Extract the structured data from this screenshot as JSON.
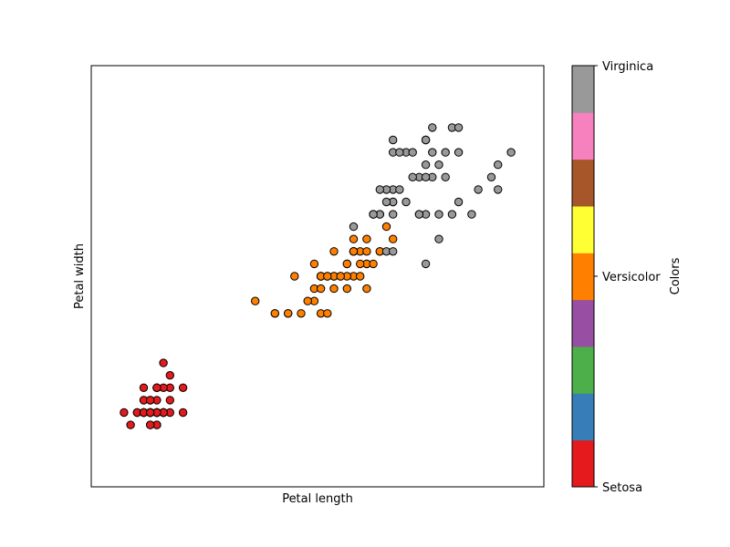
{
  "chart_data": {
    "type": "scatter",
    "xlabel": "Petal length",
    "ylabel": "Petal width",
    "xlim": [
      0.5,
      7.4
    ],
    "ylim": [
      -0.4,
      3.0
    ],
    "ticks_shown": false,
    "grid": false,
    "colorbar": {
      "label": "Colors",
      "colormap": "Set1",
      "tick_labels": [
        "Setosa",
        "Versicolor",
        "Virginica"
      ],
      "tick_positions": [
        0,
        1,
        2
      ],
      "colors": [
        "#e41a1c",
        "#377eb8",
        "#4daf4a",
        "#984ea3",
        "#ff7f00",
        "#ffff33",
        "#a65628",
        "#f781bf",
        "#999999"
      ]
    },
    "series": [
      {
        "name": "Setosa",
        "color": "#e41a1c",
        "points": [
          [
            1.4,
            0.2
          ],
          [
            1.4,
            0.2
          ],
          [
            1.3,
            0.2
          ],
          [
            1.5,
            0.2
          ],
          [
            1.4,
            0.2
          ],
          [
            1.7,
            0.4
          ],
          [
            1.4,
            0.3
          ],
          [
            1.5,
            0.2
          ],
          [
            1.4,
            0.2
          ],
          [
            1.5,
            0.1
          ],
          [
            1.5,
            0.2
          ],
          [
            1.6,
            0.2
          ],
          [
            1.4,
            0.1
          ],
          [
            1.1,
            0.1
          ],
          [
            1.2,
            0.2
          ],
          [
            1.5,
            0.4
          ],
          [
            1.3,
            0.4
          ],
          [
            1.4,
            0.3
          ],
          [
            1.7,
            0.3
          ],
          [
            1.5,
            0.3
          ],
          [
            1.7,
            0.2
          ],
          [
            1.5,
            0.4
          ],
          [
            1.0,
            0.2
          ],
          [
            1.7,
            0.5
          ],
          [
            1.9,
            0.2
          ],
          [
            1.6,
            0.2
          ],
          [
            1.6,
            0.4
          ],
          [
            1.5,
            0.2
          ],
          [
            1.4,
            0.2
          ],
          [
            1.6,
            0.2
          ],
          [
            1.6,
            0.2
          ],
          [
            1.5,
            0.4
          ],
          [
            1.5,
            0.1
          ],
          [
            1.4,
            0.2
          ],
          [
            1.5,
            0.2
          ],
          [
            1.2,
            0.2
          ],
          [
            1.3,
            0.2
          ],
          [
            1.4,
            0.1
          ],
          [
            1.3,
            0.2
          ],
          [
            1.5,
            0.2
          ],
          [
            1.3,
            0.3
          ],
          [
            1.3,
            0.3
          ],
          [
            1.3,
            0.2
          ],
          [
            1.6,
            0.6
          ],
          [
            1.9,
            0.4
          ],
          [
            1.4,
            0.3
          ],
          [
            1.6,
            0.2
          ],
          [
            1.4,
            0.2
          ],
          [
            1.5,
            0.2
          ],
          [
            1.4,
            0.2
          ]
        ]
      },
      {
        "name": "Versicolor",
        "color": "#ff7f00",
        "points": [
          [
            4.7,
            1.4
          ],
          [
            4.5,
            1.5
          ],
          [
            4.9,
            1.5
          ],
          [
            4.0,
            1.3
          ],
          [
            4.6,
            1.5
          ],
          [
            4.5,
            1.3
          ],
          [
            4.7,
            1.6
          ],
          [
            3.3,
            1.0
          ],
          [
            4.6,
            1.3
          ],
          [
            3.9,
            1.4
          ],
          [
            3.5,
            1.0
          ],
          [
            4.2,
            1.5
          ],
          [
            4.0,
            1.0
          ],
          [
            4.7,
            1.4
          ],
          [
            3.6,
            1.3
          ],
          [
            4.4,
            1.4
          ],
          [
            4.5,
            1.5
          ],
          [
            4.1,
            1.0
          ],
          [
            4.5,
            1.5
          ],
          [
            3.9,
            1.1
          ],
          [
            4.8,
            1.8
          ],
          [
            4.0,
            1.3
          ],
          [
            4.9,
            1.5
          ],
          [
            4.7,
            1.2
          ],
          [
            4.3,
            1.3
          ],
          [
            4.4,
            1.4
          ],
          [
            4.8,
            1.4
          ],
          [
            5.0,
            1.7
          ],
          [
            4.5,
            1.5
          ],
          [
            3.5,
            1.0
          ],
          [
            3.8,
            1.1
          ],
          [
            3.7,
            1.0
          ],
          [
            3.9,
            1.2
          ],
          [
            5.1,
            1.6
          ],
          [
            4.5,
            1.5
          ],
          [
            4.5,
            1.6
          ],
          [
            4.7,
            1.5
          ],
          [
            4.4,
            1.3
          ],
          [
            4.1,
            1.3
          ],
          [
            4.0,
            1.3
          ],
          [
            4.4,
            1.2
          ],
          [
            4.6,
            1.4
          ],
          [
            4.0,
            1.2
          ],
          [
            3.3,
            1.0
          ],
          [
            4.2,
            1.3
          ],
          [
            4.2,
            1.2
          ],
          [
            4.2,
            1.3
          ],
          [
            4.3,
            1.3
          ],
          [
            3.0,
            1.1
          ],
          [
            4.1,
            1.3
          ]
        ]
      },
      {
        "name": "Virginica",
        "color": "#999999",
        "points": [
          [
            6.0,
            2.5
          ],
          [
            5.1,
            1.9
          ],
          [
            5.9,
            2.1
          ],
          [
            5.6,
            1.8
          ],
          [
            5.8,
            2.2
          ],
          [
            6.6,
            2.1
          ],
          [
            4.5,
            1.7
          ],
          [
            6.3,
            1.8
          ],
          [
            5.8,
            1.8
          ],
          [
            6.1,
            2.5
          ],
          [
            5.1,
            2.0
          ],
          [
            5.3,
            1.9
          ],
          [
            5.5,
            2.1
          ],
          [
            5.0,
            2.0
          ],
          [
            5.1,
            2.4
          ],
          [
            5.3,
            2.3
          ],
          [
            5.5,
            1.8
          ],
          [
            6.7,
            2.2
          ],
          [
            6.9,
            2.3
          ],
          [
            5.0,
            1.5
          ],
          [
            5.7,
            2.3
          ],
          [
            4.9,
            2.0
          ],
          [
            6.7,
            2.0
          ],
          [
            4.9,
            1.8
          ],
          [
            5.7,
            2.1
          ],
          [
            6.0,
            1.8
          ],
          [
            4.8,
            1.8
          ],
          [
            4.9,
            1.8
          ],
          [
            5.6,
            2.1
          ],
          [
            5.8,
            1.6
          ],
          [
            6.1,
            1.9
          ],
          [
            6.4,
            2.0
          ],
          [
            5.6,
            2.2
          ],
          [
            5.1,
            1.5
          ],
          [
            5.6,
            1.4
          ],
          [
            6.1,
            2.3
          ],
          [
            5.6,
            2.4
          ],
          [
            5.5,
            1.8
          ],
          [
            4.8,
            1.8
          ],
          [
            5.4,
            2.1
          ],
          [
            5.6,
            2.4
          ],
          [
            5.1,
            2.3
          ],
          [
            5.1,
            1.9
          ],
          [
            5.9,
            2.3
          ],
          [
            5.7,
            2.5
          ],
          [
            5.2,
            2.3
          ],
          [
            5.0,
            1.9
          ],
          [
            5.2,
            2.0
          ],
          [
            5.4,
            2.3
          ],
          [
            5.1,
            1.8
          ]
        ]
      }
    ]
  }
}
